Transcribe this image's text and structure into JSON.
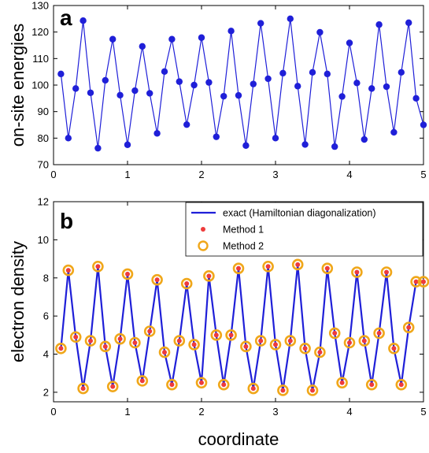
{
  "chart_data": [
    {
      "panel": "a",
      "type": "line",
      "ylabel": "on-site energies",
      "xlabel": "",
      "xlim": [
        0,
        5
      ],
      "ylim": [
        70,
        130
      ],
      "xticks": [
        0,
        1,
        2,
        3,
        4,
        5
      ],
      "yticks": [
        70,
        80,
        90,
        100,
        110,
        120,
        130
      ],
      "series": [
        {
          "color": "#1f1fd8",
          "marker": "filled-circle",
          "x": [
            0.1,
            0.2,
            0.3,
            0.4,
            0.5,
            0.6,
            0.7,
            0.8,
            0.9,
            1.0,
            1.1,
            1.2,
            1.3,
            1.4,
            1.5,
            1.6,
            1.7,
            1.8,
            1.9,
            2.0,
            2.1,
            2.2,
            2.3,
            2.4,
            2.5,
            2.6,
            2.7,
            2.8,
            2.9,
            3.0,
            3.1,
            3.2,
            3.3,
            3.4,
            3.5,
            3.6,
            3.7,
            3.8,
            3.9,
            4.0,
            4.1,
            4.2,
            4.3,
            4.4,
            4.5,
            4.6,
            4.7,
            4.8,
            4.9,
            5.0
          ],
          "y": [
            104.2,
            80.0,
            98.7,
            124.3,
            97.1,
            76.2,
            101.8,
            117.3,
            96.2,
            77.5,
            97.9,
            114.6,
            96.9,
            81.8,
            105.1,
            117.3,
            101.3,
            85.1,
            100.0,
            117.9,
            101.0,
            80.5,
            95.8,
            120.4,
            96.1,
            77.2,
            100.4,
            123.3,
            102.4,
            80.0,
            104.5,
            125.0,
            99.6,
            77.6,
            104.8,
            119.9,
            104.2,
            76.8,
            95.7,
            115.9,
            100.8,
            79.5,
            98.7,
            122.8,
            99.4,
            82.2,
            104.8,
            123.5,
            95.0,
            85.0
          ]
        }
      ]
    },
    {
      "panel": "b",
      "type": "line",
      "ylabel": "electron density",
      "xlabel": "coordinate",
      "xlim": [
        0,
        5
      ],
      "ylim": [
        1.5,
        12
      ],
      "xticks": [
        0,
        1,
        2,
        3,
        4,
        5
      ],
      "yticks": [
        2,
        4,
        6,
        8,
        10,
        12
      ],
      "legend_position": "top-right",
      "series": [
        {
          "name": "exact (Hamiltonian diagonalization)",
          "color": "#1f1fd8",
          "marker": "line",
          "x": [
            0.1,
            0.2,
            0.3,
            0.4,
            0.5,
            0.6,
            0.7,
            0.8,
            0.9,
            1.0,
            1.1,
            1.2,
            1.3,
            1.4,
            1.5,
            1.6,
            1.7,
            1.8,
            1.9,
            2.0,
            2.1,
            2.2,
            2.3,
            2.4,
            2.5,
            2.6,
            2.7,
            2.8,
            2.9,
            3.0,
            3.1,
            3.2,
            3.3,
            3.4,
            3.5,
            3.6,
            3.7,
            3.8,
            3.9,
            4.0,
            4.1,
            4.2,
            4.3,
            4.4,
            4.5,
            4.6,
            4.7,
            4.8,
            4.9,
            5.0
          ],
          "y": [
            4.3,
            8.4,
            4.9,
            2.2,
            4.7,
            8.6,
            4.4,
            2.3,
            4.8,
            8.2,
            4.6,
            2.6,
            5.2,
            7.9,
            4.1,
            2.4,
            4.7,
            7.7,
            4.5,
            2.5,
            8.1,
            5.0,
            2.4,
            5.0,
            8.5,
            4.4,
            2.2,
            4.7,
            8.6,
            4.5,
            2.1,
            4.7,
            8.7,
            4.3,
            2.1,
            4.1,
            8.5,
            5.1,
            2.5,
            4.6,
            8.3,
            4.7,
            2.4,
            5.1,
            8.3,
            4.3,
            2.4,
            5.4,
            7.8,
            7.8
          ]
        },
        {
          "name": "Method 1",
          "color": "#ee3b3b",
          "marker": "dot",
          "same_as": "exact"
        },
        {
          "name": "Method 2",
          "color": "#f0a71a",
          "marker": "open-circle",
          "same_as": "exact"
        }
      ]
    }
  ]
}
